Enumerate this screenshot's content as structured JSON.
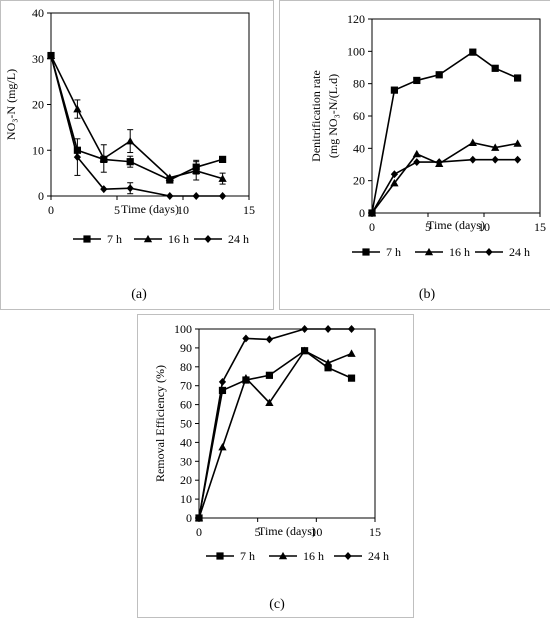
{
  "chart_data": [
    {
      "panel": "(a)",
      "type": "line",
      "xlabel": "Time (days)",
      "ylabel": "NO₃-N (mg/L)",
      "xlim": [
        0,
        15
      ],
      "ylim": [
        0,
        40
      ],
      "xticks": [
        0,
        5,
        10,
        15
      ],
      "yticks": [
        0,
        10,
        20,
        30,
        40
      ],
      "grid": false,
      "legend": "bottom",
      "series": [
        {
          "name": "7 h",
          "marker": "square",
          "x": [
            0,
            2,
            4,
            6,
            9,
            11,
            13
          ],
          "y": [
            30.7,
            10,
            8,
            7.5,
            3.5,
            6.3,
            8
          ],
          "error": [
            0,
            0,
            0,
            1.2,
            0,
            1.5,
            0
          ]
        },
        {
          "name": "16 h",
          "marker": "triangle",
          "x": [
            0,
            2,
            4,
            6,
            9,
            11,
            13
          ],
          "y": [
            30.7,
            19,
            8.2,
            12,
            4,
            5.5,
            3.8
          ],
          "error": [
            0,
            2,
            3,
            2.5,
            0,
            2,
            1.2
          ]
        },
        {
          "name": "24 h",
          "marker": "diamond",
          "x": [
            0,
            2,
            4,
            6,
            9,
            11,
            13
          ],
          "y": [
            30.7,
            8.5,
            1.5,
            1.7,
            0,
            0,
            0
          ],
          "error": [
            0,
            4,
            0,
            1.2,
            0,
            0,
            0
          ]
        }
      ]
    },
    {
      "panel": "(b)",
      "type": "line",
      "xlabel": "Time (days)",
      "ylabel": "Denitrification rate",
      "ylabel2": "(mg NO₃-N/(L.d)",
      "xlim": [
        0,
        15
      ],
      "ylim": [
        0,
        120
      ],
      "xticks": [
        0,
        5,
        10,
        15
      ],
      "yticks": [
        0,
        20,
        40,
        60,
        80,
        100,
        120
      ],
      "grid": false,
      "legend": "bottom",
      "series": [
        {
          "name": "7 h",
          "marker": "square",
          "x": [
            0,
            2,
            4,
            6,
            9,
            11,
            13
          ],
          "y": [
            0,
            76,
            82,
            85.5,
            99.5,
            89.5,
            83.5
          ]
        },
        {
          "name": "16 h",
          "marker": "triangle",
          "x": [
            0,
            2,
            4,
            6,
            9,
            11,
            13
          ],
          "y": [
            0,
            18.5,
            36.5,
            30.5,
            43.5,
            40.5,
            43
          ]
        },
        {
          "name": "24 h",
          "marker": "diamond",
          "x": [
            0,
            2,
            4,
            6,
            9,
            11,
            13
          ],
          "y": [
            0,
            24,
            31.5,
            31.5,
            33,
            33,
            33
          ]
        }
      ]
    },
    {
      "panel": "(c)",
      "type": "line",
      "xlabel": "Time (days)",
      "ylabel": "Removal Efficiency (%)",
      "xlim": [
        0,
        15
      ],
      "ylim": [
        0,
        100
      ],
      "xticks": [
        0,
        5,
        10,
        15
      ],
      "yticks": [
        0,
        10,
        20,
        30,
        40,
        50,
        60,
        70,
        80,
        90,
        100
      ],
      "grid": false,
      "legend": "bottom",
      "series": [
        {
          "name": "7 h",
          "marker": "square",
          "x": [
            0,
            2,
            4,
            6,
            9,
            11,
            13
          ],
          "y": [
            0,
            67.5,
            73,
            75.5,
            88.5,
            79.5,
            74
          ]
        },
        {
          "name": "16 h",
          "marker": "triangle",
          "x": [
            0,
            2,
            4,
            6,
            9,
            11,
            13
          ],
          "y": [
            0,
            37.5,
            74,
            61,
            88.5,
            82,
            87
          ]
        },
        {
          "name": "24 h",
          "marker": "diamond",
          "x": [
            0,
            2,
            4,
            6,
            9,
            11,
            13
          ],
          "y": [
            0,
            72,
            95,
            94.5,
            100,
            100,
            100
          ]
        }
      ]
    }
  ]
}
